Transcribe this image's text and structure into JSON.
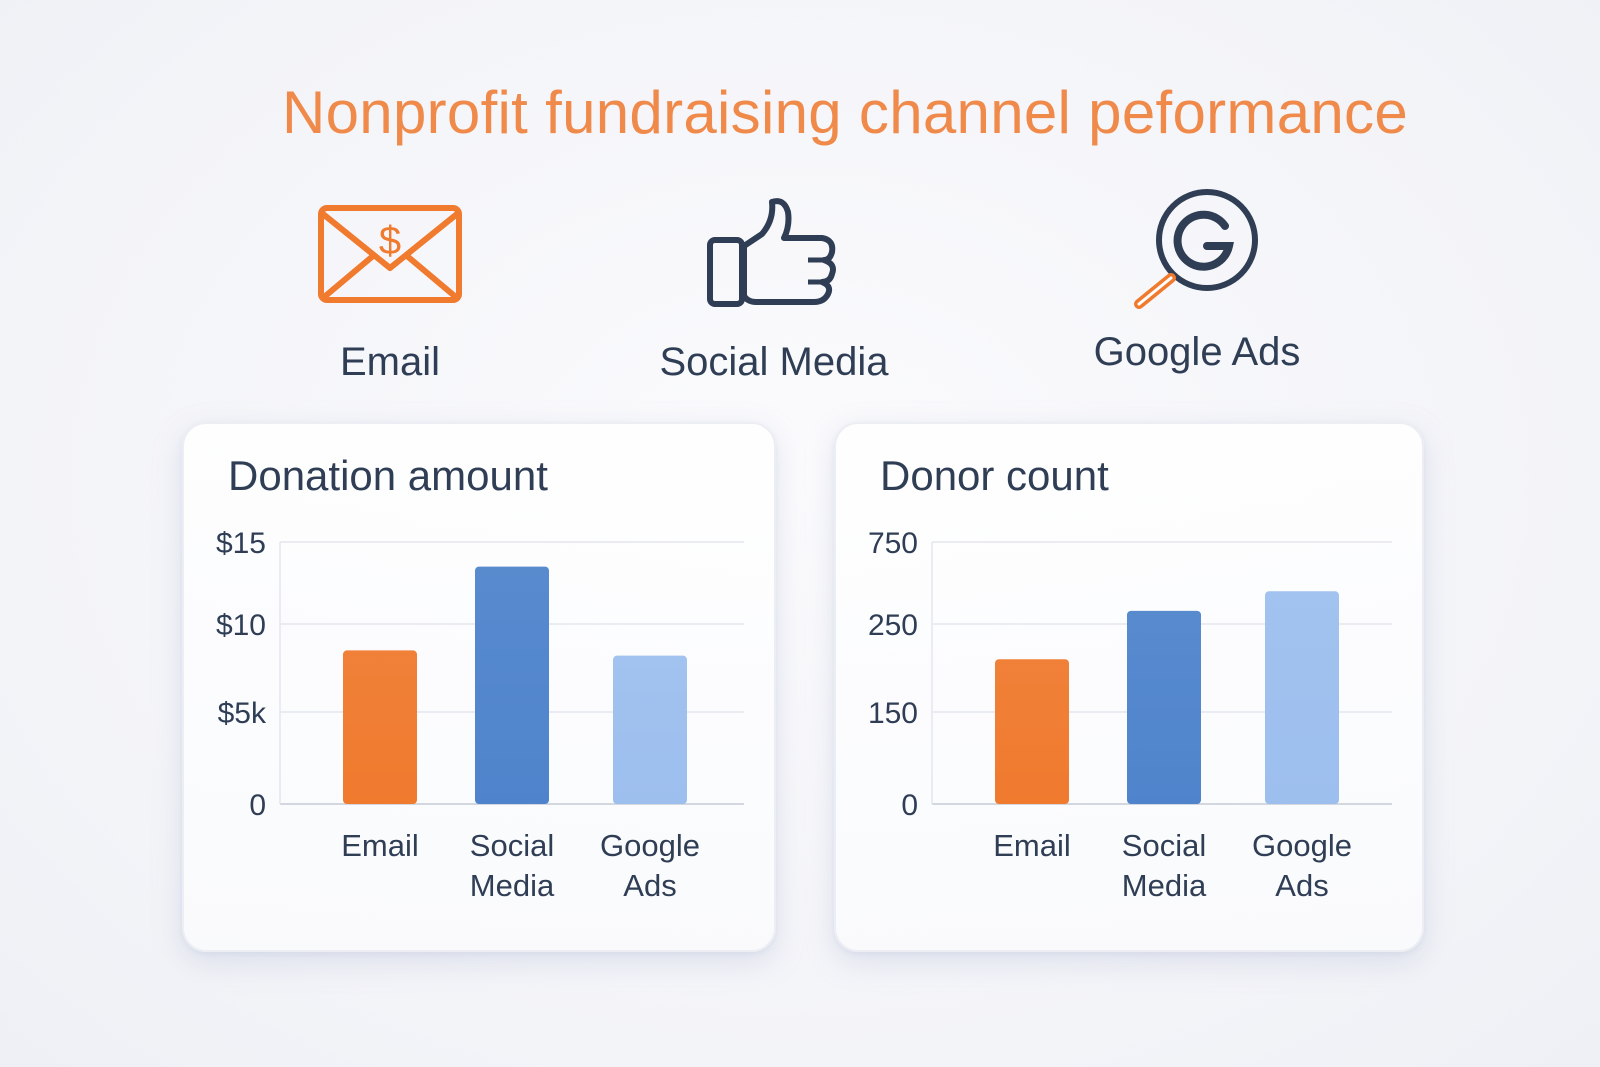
{
  "title": "Nonprofit fundraising channel peformance",
  "channels": [
    {
      "label": "Email",
      "icon": "email-dollar-icon"
    },
    {
      "label": "Social Media",
      "icon": "thumbs-up-icon"
    },
    {
      "label": "Google Ads",
      "icon": "google-search-icon"
    }
  ],
  "colors": {
    "title": "#f08a4b",
    "text": "#2f3e55",
    "email": "#f07a2e",
    "social": "#4f84cc",
    "google": "#9dbfee",
    "grid": "#e3e6ee"
  },
  "chart_data": [
    {
      "type": "bar",
      "title": "Donation amount",
      "categories": [
        "Email",
        "Social Media",
        "Google Ads"
      ],
      "category_lines": [
        [
          "Email"
        ],
        [
          "Social",
          "Media"
        ],
        [
          "Google",
          "Ads"
        ]
      ],
      "values": [
        8.5,
        13.5,
        8.2
      ],
      "ylim": [
        0,
        15
      ],
      "yticks": [
        0,
        5,
        10,
        15
      ],
      "ytick_labels": [
        "0",
        "$5k",
        "$10",
        "$15"
      ],
      "grid": true,
      "xlabel": "",
      "ylabel": ""
    },
    {
      "type": "bar",
      "title": "Donor count",
      "categories": [
        "Email",
        "Social Media",
        "Google Ads"
      ],
      "category_lines": [
        [
          "Email"
        ],
        [
          "Social",
          "Media"
        ],
        [
          "Google",
          "Ads"
        ]
      ],
      "values": [
        210,
        330,
        450
      ],
      "ylim": [
        0,
        750
      ],
      "yticks": [
        0,
        150,
        250,
        750
      ],
      "ytick_labels": [
        "0",
        "150",
        "250",
        "750"
      ],
      "grid": true,
      "xlabel": "",
      "ylabel": ""
    }
  ]
}
